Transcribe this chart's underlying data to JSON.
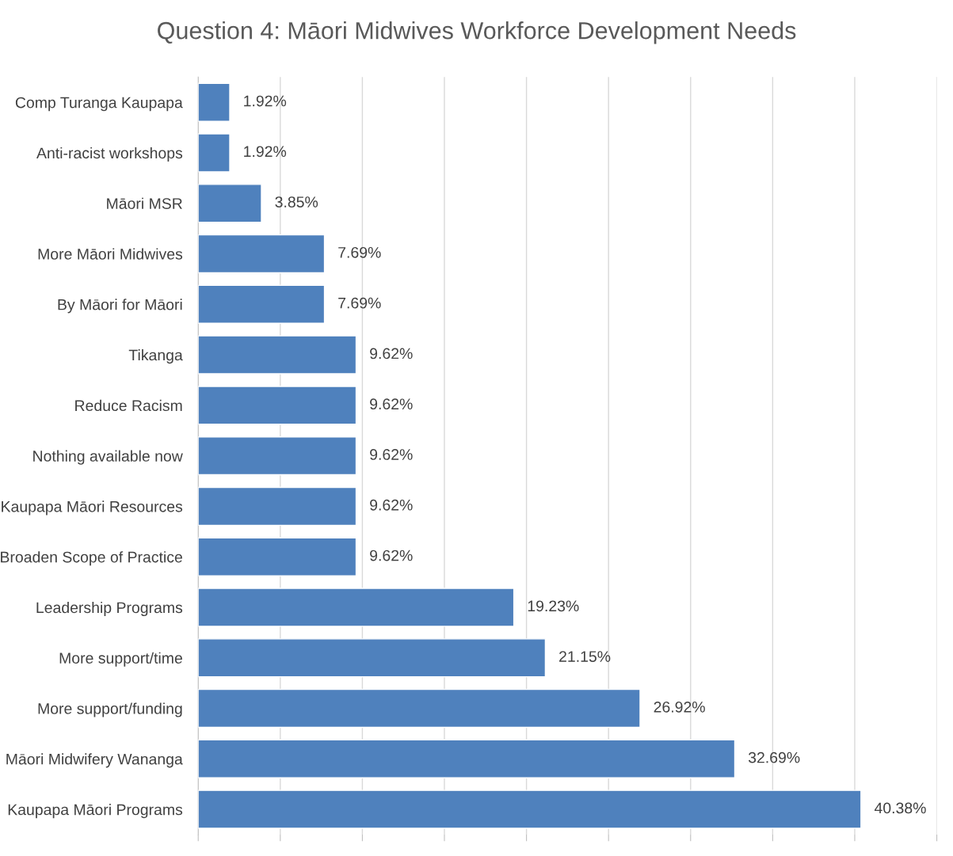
{
  "chart_data": {
    "type": "bar",
    "orientation": "horizontal",
    "title": "Question 4: Māori Midwives Workforce Development Needs",
    "categories": [
      "Comp Turanga Kaupapa",
      "Anti-racist workshops",
      "Māori MSR",
      "More Māori Midwives",
      "By Māori for Māori",
      "Tikanga",
      "Reduce Racism",
      "Nothing available now",
      "Kaupapa Māori Resources",
      "Broaden Scope of Practice",
      "Leadership Programs",
      "More support/time",
      "More support/funding",
      "Māori Midwifery Wananga",
      "Kaupapa Māori Programs"
    ],
    "values": [
      1.92,
      1.92,
      3.85,
      7.69,
      7.69,
      9.62,
      9.62,
      9.62,
      9.62,
      9.62,
      19.23,
      21.15,
      26.92,
      32.69,
      40.38
    ],
    "value_labels": [
      "1.92%",
      "1.92%",
      "3.85%",
      "7.69%",
      "7.69%",
      "9.62%",
      "9.62%",
      "9.62%",
      "9.62%",
      "9.62%",
      "19.23%",
      "21.15%",
      "26.92%",
      "32.69%",
      "40.38%"
    ],
    "color": "#4f81bd",
    "xlim": [
      0,
      45
    ],
    "xticks": [
      {
        "value": 0,
        "label": null
      },
      {
        "value": 5,
        "label": null
      },
      {
        "value": 10,
        "label": null
      },
      {
        "value": 15,
        "label": null
      },
      {
        "value": 20,
        "label": null
      },
      {
        "value": 25,
        "label": null
      },
      {
        "value": 30,
        "label": null
      },
      {
        "value": 35,
        "label": null
      },
      {
        "value": 40,
        "label": null
      },
      {
        "value": 45,
        "label": null
      }
    ],
    "grid": "x",
    "tick_labels": "y",
    "legend": false
  }
}
